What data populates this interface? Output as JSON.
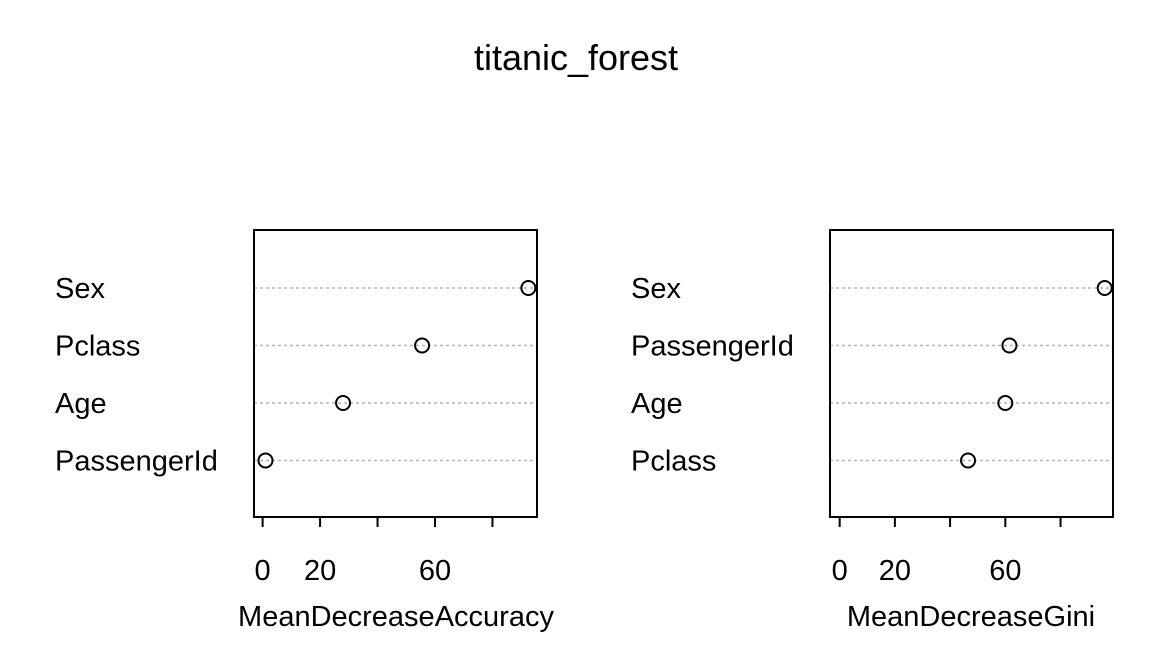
{
  "title": "titanic_forest",
  "colors": {
    "ink": "#000000",
    "grid": "#b3b3b3",
    "background": "#ffffff"
  },
  "chart_data": [
    {
      "type": "scatter",
      "subtype": "dotchart",
      "categories": [
        "Sex",
        "Pclass",
        "Age",
        "PassengerId"
      ],
      "values": [
        92.5,
        55.5,
        28,
        1
      ],
      "xlabel": "MeanDecreaseAccuracy",
      "xticks": [
        0,
        20,
        40,
        60,
        80
      ],
      "xtick_labels": [
        "0",
        "20",
        "",
        "60",
        ""
      ],
      "xlim": [
        -3,
        95.5
      ],
      "grid": "dotted horizontal guide lines"
    },
    {
      "type": "scatter",
      "subtype": "dotchart",
      "categories": [
        "Sex",
        "PassengerId",
        "Age",
        "Pclass"
      ],
      "values": [
        96,
        61.5,
        60,
        46.5
      ],
      "xlabel": "MeanDecreaseGini",
      "xticks": [
        0,
        20,
        40,
        60,
        80
      ],
      "xtick_labels": [
        "0",
        "20",
        "",
        "60",
        ""
      ],
      "xlim": [
        -3.5,
        99
      ],
      "grid": "dotted horizontal guide lines"
    }
  ]
}
